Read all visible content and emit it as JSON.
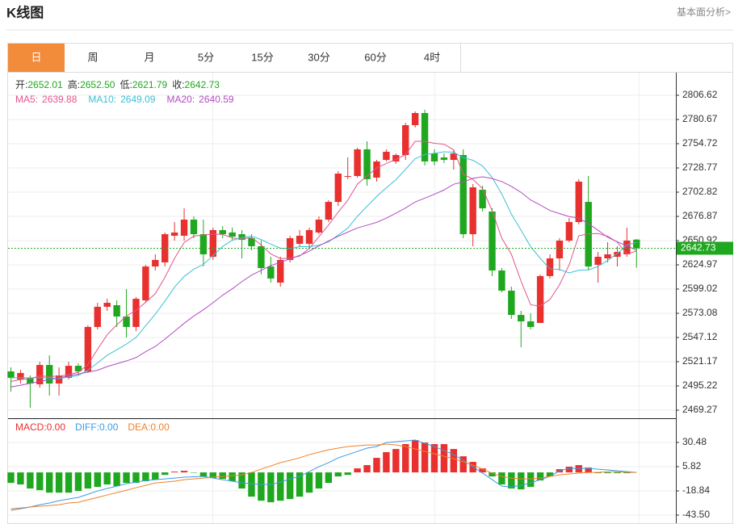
{
  "header": {
    "title": "K线图",
    "link": "基本面分析>"
  },
  "tabs": {
    "items": [
      "日",
      "周",
      "月",
      "5分",
      "15分",
      "30分",
      "60分",
      "4时"
    ],
    "active": 0,
    "active_color": "#f28b3a"
  },
  "chart_data": [
    {
      "type": "candlestick",
      "ohlc_labels": [
        "开:",
        "高:",
        "低:",
        "收:"
      ],
      "ohlc_value_labels": [
        "2652.01",
        "2652.50",
        "2621.79",
        "2642.73"
      ],
      "up_color": "#e8312f",
      "down_color": "#1fa81f",
      "open": [
        2510.8,
        2502.1,
        2503.9,
        2497.0,
        2517.7,
        2497.8,
        2503.9,
        2516.8,
        2510.8,
        2558.4,
        2580.0,
        2581.7,
        2569.6,
        2558.4,
        2586.9,
        2623.2,
        2627.6,
        2656.1,
        2656.1,
        2673.4,
        2657.8,
        2633.6,
        2662.2,
        2659.6,
        2657.8,
        2653.5,
        2644.9,
        2623.2,
        2605.9,
        2630.2,
        2647.5,
        2647.5,
        2659.6,
        2673.4,
        2692.4,
        2720.1,
        2720.1,
        2748.7,
        2718.4,
        2737.4,
        2735.7,
        2742.6,
        2774.6,
        2787.6,
        2744.3,
        2740.0,
        2737.4,
        2742.6,
        2657.8,
        2705.4,
        2682.1,
        2618.9,
        2597.3,
        2571.3,
        2564.4,
        2562.7,
        2612.9,
        2631.9,
        2650.9,
        2670.8,
        2692.4,
        2625.0,
        2631.9,
        2633.6,
        2636.2,
        2652.01
      ],
      "high": [
        2515.1,
        2512.5,
        2506.5,
        2521.2,
        2528.1,
        2515.1,
        2521.2,
        2519.4,
        2560.1,
        2584.3,
        2588.6,
        2586.9,
        2599.0,
        2590.4,
        2625.0,
        2636.2,
        2659.6,
        2670.8,
        2685.5,
        2676.9,
        2673.4,
        2664.8,
        2666.5,
        2664.8,
        2662.2,
        2657.8,
        2650.9,
        2633.6,
        2633.6,
        2656.1,
        2662.2,
        2664.8,
        2676.9,
        2694.2,
        2725.3,
        2740.0,
        2750.4,
        2757.3,
        2737.4,
        2748.7,
        2744.3,
        2777.2,
        2789.3,
        2791.1,
        2748.7,
        2744.3,
        2747.8,
        2748.7,
        2711.5,
        2709.7,
        2685.5,
        2621.5,
        2601.6,
        2575.7,
        2573.1,
        2614.6,
        2636.2,
        2653.5,
        2675.1,
        2716.7,
        2720.1,
        2638.8,
        2649.2,
        2644.9,
        2664.8,
        2652.5
      ],
      "low": [
        2489.2,
        2497.8,
        2471.9,
        2493.5,
        2484.8,
        2484.8,
        2502.1,
        2506.5,
        2509.1,
        2555.8,
        2575.7,
        2558.4,
        2547.1,
        2554.0,
        2584.3,
        2618.9,
        2623.2,
        2650.9,
        2650.9,
        2653.5,
        2623.2,
        2630.2,
        2653.5,
        2650.9,
        2631.9,
        2640.5,
        2614.6,
        2605.9,
        2601.6,
        2627.6,
        2644.9,
        2642.3,
        2657.8,
        2670.8,
        2688.1,
        2716.7,
        2718.4,
        2709.7,
        2714.1,
        2735.7,
        2733.1,
        2737.4,
        2772.0,
        2731.4,
        2731.4,
        2734.0,
        2727.0,
        2653.5,
        2644.9,
        2682.1,
        2612.9,
        2595.6,
        2567.0,
        2536.7,
        2555.8,
        2562.7,
        2610.3,
        2618.9,
        2649.2,
        2668.2,
        2618.9,
        2605.9,
        2627.6,
        2623.2,
        2633.6,
        2621.79
      ],
      "close": [
        2503.9,
        2509.1,
        2497.8,
        2517.7,
        2497.8,
        2506.5,
        2516.8,
        2510.8,
        2558.4,
        2580.0,
        2584.3,
        2569.6,
        2558.4,
        2588.6,
        2623.2,
        2630.2,
        2657.8,
        2659.6,
        2673.4,
        2657.8,
        2636.2,
        2662.2,
        2657.8,
        2655.2,
        2651.8,
        2644.9,
        2621.5,
        2610.3,
        2630.2,
        2653.5,
        2656.1,
        2662.2,
        2673.4,
        2692.4,
        2722.7,
        2720.1,
        2748.7,
        2716.7,
        2735.7,
        2746.1,
        2742.6,
        2774.6,
        2787.6,
        2735.7,
        2735.7,
        2737.4,
        2744.3,
        2657.8,
        2708.0,
        2685.5,
        2618.9,
        2597.3,
        2571.3,
        2564.4,
        2558.4,
        2612.9,
        2631.9,
        2650.9,
        2670.8,
        2714.1,
        2623.2,
        2633.6,
        2636.2,
        2638.8,
        2650.9,
        2642.73
      ],
      "ma": [
        {
          "name": "MA5:",
          "color": "#e2568c",
          "last_value": 2639.88,
          "values": [
            2500.0,
            2502.0,
            2503.0,
            2506.0,
            2505.3,
            2505.8,
            2507.3,
            2509.9,
            2518.1,
            2534.5,
            2550.1,
            2560.6,
            2570.1,
            2576.2,
            2584.8,
            2594.0,
            2611.6,
            2631.9,
            2648.8,
            2655.8,
            2657.0,
            2657.8,
            2657.5,
            2653.8,
            2652.6,
            2654.4,
            2646.2,
            2636.7,
            2631.7,
            2632.1,
            2634.3,
            2642.5,
            2655.1,
            2667.5,
            2681.4,
            2694.2,
            2711.5,
            2720.1,
            2728.8,
            2733.5,
            2738.0,
            2743.1,
            2757.3,
            2757.3,
            2755.2,
            2754.2,
            2748.1,
            2722.2,
            2716.6,
            2706.6,
            2682.9,
            2653.5,
            2636.2,
            2607.5,
            2582.1,
            2580.9,
            2587.8,
            2603.7,
            2625.0,
            2656.1,
            2658.2,
            2658.5,
            2655.6,
            2649.2,
            2636.5,
            2639.88
          ]
        },
        {
          "name": "MA10:",
          "color": "#3cbfd6",
          "last_value": 2649.09,
          "values": [
            2504.0,
            2504.0,
            2504.0,
            2504.0,
            2504.0,
            2502.9,
            2504.7,
            2506.5,
            2512.1,
            2519.9,
            2528.0,
            2534.0,
            2540.0,
            2547.2,
            2559.7,
            2572.1,
            2586.1,
            2601.0,
            2612.5,
            2620.3,
            2625.5,
            2634.7,
            2644.7,
            2651.3,
            2654.2,
            2655.7,
            2652.0,
            2647.1,
            2642.8,
            2642.4,
            2644.4,
            2644.4,
            2645.9,
            2649.6,
            2656.8,
            2664.3,
            2677.0,
            2687.6,
            2698.2,
            2707.5,
            2716.1,
            2727.3,
            2738.7,
            2743.1,
            2744.4,
            2746.1,
            2745.6,
            2739.8,
            2737.0,
            2730.9,
            2718.6,
            2700.8,
            2679.2,
            2662.1,
            2644.4,
            2631.9,
            2620.7,
            2620.0,
            2616.3,
            2619.1,
            2619.6,
            2623.2,
            2629.7,
            2637.1,
            2646.3,
            2649.09
          ]
        },
        {
          "name": "MA20:",
          "color": "#b24cc4",
          "last_value": 2640.59,
          "values": [
            2494,
            2496,
            2498,
            2500,
            2502,
            2504,
            2506,
            2508,
            2510,
            2512,
            2516.0,
            2519.0,
            2522.0,
            2525.6,
            2531.9,
            2537.5,
            2545.4,
            2553.8,
            2562.3,
            2570.1,
            2576.8,
            2584.4,
            2592.4,
            2599.3,
            2607.0,
            2613.9,
            2619.1,
            2624.1,
            2627.7,
            2631.4,
            2635.0,
            2639.6,
            2645.3,
            2650.5,
            2655.5,
            2660.0,
            2664.5,
            2667.4,
            2670.5,
            2675.0,
            2680.3,
            2685.9,
            2692.3,
            2696.4,
            2700.6,
            2705.2,
            2711.3,
            2713.7,
            2717.6,
            2719.2,
            2717.4,
            2714.1,
            2709.0,
            2702.6,
            2694.4,
            2689.0,
            2683.2,
            2679.9,
            2676.7,
            2675.0,
            2669.1,
            2662.0,
            2654.5,
            2649.6,
            2645.4,
            2640.59
          ]
        }
      ],
      "ylim": [
        2460.62,
        2830.84
      ],
      "yticks": [
        2469.27,
        2495.22,
        2521.17,
        2547.12,
        2573.08,
        2599.02,
        2624.97,
        2650.92,
        2676.87,
        2702.82,
        2728.77,
        2754.72,
        2780.67,
        2806.62
      ],
      "grid": true
    },
    {
      "type": "macd",
      "up_color": "#e8312f",
      "down_color": "#1fa81f",
      "series": [
        {
          "name": "MACD:",
          "style": "bar",
          "color": "#e8312f",
          "last_value": {
            "value": 0,
            "label": "0.00"
          },
          "values": [
            -10.7,
            -12.3,
            -16.4,
            -18.1,
            -20.6,
            -20.6,
            -20.6,
            -18.9,
            -16.4,
            -14.8,
            -12.3,
            -14.0,
            -10.7,
            -10.7,
            -9.0,
            -7.4,
            -2.5,
            0.8,
            1.6,
            -0.4,
            -4.1,
            -5.8,
            -6.6,
            -9.0,
            -16.4,
            -24.7,
            -28.8,
            -30.4,
            -28.8,
            -27.1,
            -24.7,
            -20.6,
            -16.4,
            -10.7,
            -4.1,
            -2.5,
            4.1,
            7.4,
            14.8,
            20.6,
            23.8,
            28.8,
            32.9,
            30.4,
            28.8,
            28.8,
            23.8,
            16.4,
            10.7,
            4.1,
            -4.1,
            -12.3,
            -16.4,
            -17.3,
            -14.8,
            -8.2,
            -4.1,
            3.3,
            5.8,
            7.4,
            4.9,
            -0.8,
            -0.8,
            -0.8,
            -0.8,
            0
          ]
        },
        {
          "name": "DIFF:",
          "style": "line",
          "color": "#3a9be6",
          "last_value": {
            "value": 0,
            "label": "0.00"
          },
          "values": [
            -38.6,
            -37.0,
            -35.3,
            -32.9,
            -31.2,
            -28.8,
            -27.1,
            -25.5,
            -22.2,
            -18.9,
            -16.4,
            -14.0,
            -11.5,
            -9.9,
            -8.2,
            -7.4,
            -6.6,
            -5.8,
            -4.9,
            -4.5,
            -4.1,
            -5.8,
            -7.4,
            -9.0,
            -10.7,
            -11.5,
            -12.3,
            -12.3,
            -9.9,
            -6.6,
            -4.1,
            0.8,
            5.8,
            9.9,
            14.8,
            18.1,
            21.4,
            24.7,
            26.3,
            30.4,
            31.2,
            32.1,
            32.9,
            29.6,
            26.3,
            22.2,
            18.1,
            12.3,
            5.8,
            -0.8,
            -7.4,
            -14.0,
            -14.8,
            -13.2,
            -10.7,
            -7.4,
            -4.1,
            1.6,
            4.1,
            4.1,
            4.1,
            3.3,
            2.5,
            1.6,
            0.8,
            0
          ]
        },
        {
          "name": "DEA:",
          "style": "line",
          "color": "#f0822a",
          "last_value": {
            "value": 0,
            "label": "0.00"
          },
          "values": [
            -37.0,
            -36.2,
            -35.3,
            -34.5,
            -33.7,
            -32.9,
            -31.2,
            -30.4,
            -27.9,
            -25.5,
            -23.0,
            -20.6,
            -18.1,
            -15.6,
            -13.2,
            -10.7,
            -9.9,
            -9.0,
            -7.4,
            -6.6,
            -5.8,
            -4.9,
            -4.1,
            -3.3,
            -2.5,
            0.0,
            3.3,
            6.6,
            9.9,
            12.3,
            14.8,
            18.1,
            20.6,
            23.0,
            24.7,
            26.3,
            27.1,
            27.9,
            27.9,
            28.8,
            27.9,
            26.3,
            23.8,
            21.4,
            18.9,
            16.4,
            14.0,
            10.7,
            7.4,
            3.3,
            -0.8,
            -4.1,
            -5.8,
            -6.6,
            -6.6,
            -5.8,
            -4.1,
            -2.5,
            -1.6,
            -0.8,
            0.0,
            0.0,
            0.8,
            0.8,
            0.0,
            0
          ]
        }
      ],
      "ylim": [
        -52.54,
        55.14
      ],
      "yticks": [
        30.48,
        5.82,
        -18.84,
        {
          "value": -43.5,
          "label": "-43.50"
        }
      ],
      "grid": true
    }
  ]
}
